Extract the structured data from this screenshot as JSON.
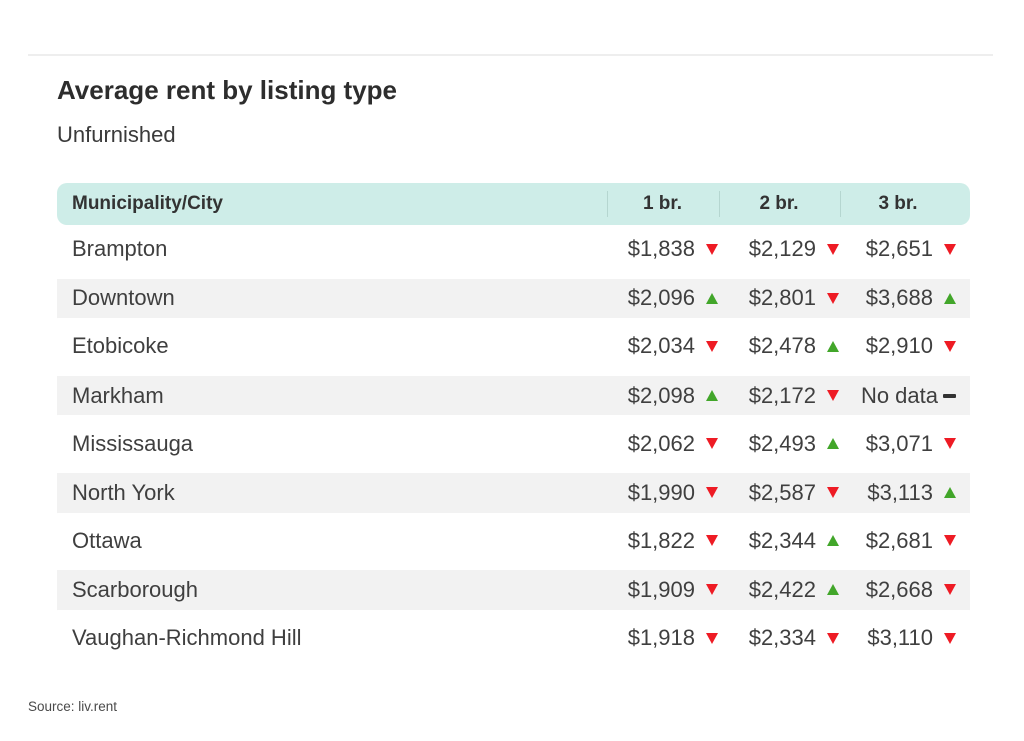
{
  "page": {
    "title": "Average rent by listing type",
    "subtitle": "Unfurnished",
    "source": "Source: liv.rent"
  },
  "colors": {
    "header_bg": "#ceede8",
    "header_separator": "#b5d6d0",
    "alt_row_bg": "#f2f2f2",
    "trend_up": "#42a62a",
    "trend_down": "#ee1b24",
    "no_data_dash": "#333333"
  },
  "table": {
    "columns": [
      "Municipality/City",
      "1 br.",
      "2 br.",
      "3 br."
    ],
    "rows": [
      {
        "city": "Brampton",
        "values": [
          {
            "amount": "$1,838",
            "trend": "down"
          },
          {
            "amount": "$2,129",
            "trend": "down"
          },
          {
            "amount": "$2,651",
            "trend": "down"
          }
        ]
      },
      {
        "city": "Downtown",
        "values": [
          {
            "amount": "$2,096",
            "trend": "up"
          },
          {
            "amount": "$2,801",
            "trend": "down"
          },
          {
            "amount": "$3,688",
            "trend": "up"
          }
        ]
      },
      {
        "city": "Etobicoke",
        "values": [
          {
            "amount": "$2,034",
            "trend": "down"
          },
          {
            "amount": "$2,478",
            "trend": "up"
          },
          {
            "amount": "$2,910",
            "trend": "down"
          }
        ]
      },
      {
        "city": "Markham",
        "values": [
          {
            "amount": "$2,098",
            "trend": "up"
          },
          {
            "amount": "$2,172",
            "trend": "down"
          },
          {
            "amount": "No data",
            "trend": "none"
          }
        ]
      },
      {
        "city": "Mississauga",
        "values": [
          {
            "amount": "$2,062",
            "trend": "down"
          },
          {
            "amount": "$2,493",
            "trend": "up"
          },
          {
            "amount": "$3,071",
            "trend": "down"
          }
        ]
      },
      {
        "city": "North York",
        "values": [
          {
            "amount": "$1,990",
            "trend": "down"
          },
          {
            "amount": "$2,587",
            "trend": "down"
          },
          {
            "amount": "$3,113",
            "trend": "up"
          }
        ]
      },
      {
        "city": "Ottawa",
        "values": [
          {
            "amount": "$1,822",
            "trend": "down"
          },
          {
            "amount": "$2,344",
            "trend": "up"
          },
          {
            "amount": "$2,681",
            "trend": "down"
          }
        ]
      },
      {
        "city": "Scarborough",
        "values": [
          {
            "amount": "$1,909",
            "trend": "down"
          },
          {
            "amount": "$2,422",
            "trend": "up"
          },
          {
            "amount": "$2,668",
            "trend": "down"
          }
        ]
      },
      {
        "city": "Vaughan-Richmond Hill",
        "values": [
          {
            "amount": "$1,918",
            "trend": "down"
          },
          {
            "amount": "$2,334",
            "trend": "down"
          },
          {
            "amount": "$3,110",
            "trend": "down"
          }
        ]
      }
    ]
  },
  "chart_data": {
    "type": "table",
    "title": "Average rent by listing type",
    "subtitle": "Unfurnished",
    "columns": [
      "Municipality/City",
      "1 br.",
      "2 br.",
      "3 br."
    ],
    "rows": [
      {
        "municipality": "Brampton",
        "br1": 1838,
        "br1_trend": "down",
        "br2": 2129,
        "br2_trend": "down",
        "br3": 2651,
        "br3_trend": "down"
      },
      {
        "municipality": "Downtown",
        "br1": 2096,
        "br1_trend": "up",
        "br2": 2801,
        "br2_trend": "down",
        "br3": 3688,
        "br3_trend": "up"
      },
      {
        "municipality": "Etobicoke",
        "br1": 2034,
        "br1_trend": "down",
        "br2": 2478,
        "br2_trend": "up",
        "br3": 2910,
        "br3_trend": "down"
      },
      {
        "municipality": "Markham",
        "br1": 2098,
        "br1_trend": "up",
        "br2": 2172,
        "br2_trend": "down",
        "br3": null,
        "br3_trend": "none"
      },
      {
        "municipality": "Mississauga",
        "br1": 2062,
        "br1_trend": "down",
        "br2": 2493,
        "br2_trend": "up",
        "br3": 3071,
        "br3_trend": "down"
      },
      {
        "municipality": "North York",
        "br1": 1990,
        "br1_trend": "down",
        "br2": 2587,
        "br2_trend": "down",
        "br3": 3113,
        "br3_trend": "up"
      },
      {
        "municipality": "Ottawa",
        "br1": 1822,
        "br1_trend": "down",
        "br2": 2344,
        "br2_trend": "up",
        "br3": 2681,
        "br3_trend": "down"
      },
      {
        "municipality": "Scarborough",
        "br1": 1909,
        "br1_trend": "down",
        "br2": 2422,
        "br2_trend": "up",
        "br3": 2668,
        "br3_trend": "down"
      },
      {
        "municipality": "Vaughan-Richmond Hill",
        "br1": 1918,
        "br1_trend": "down",
        "br2": 2334,
        "br2_trend": "down",
        "br3": 3110,
        "br3_trend": "down"
      }
    ],
    "source": "Source: liv.rent",
    "currency": "CAD $",
    "no_data_cells": [
      {
        "municipality": "Markham",
        "column": "3 br."
      }
    ]
  }
}
